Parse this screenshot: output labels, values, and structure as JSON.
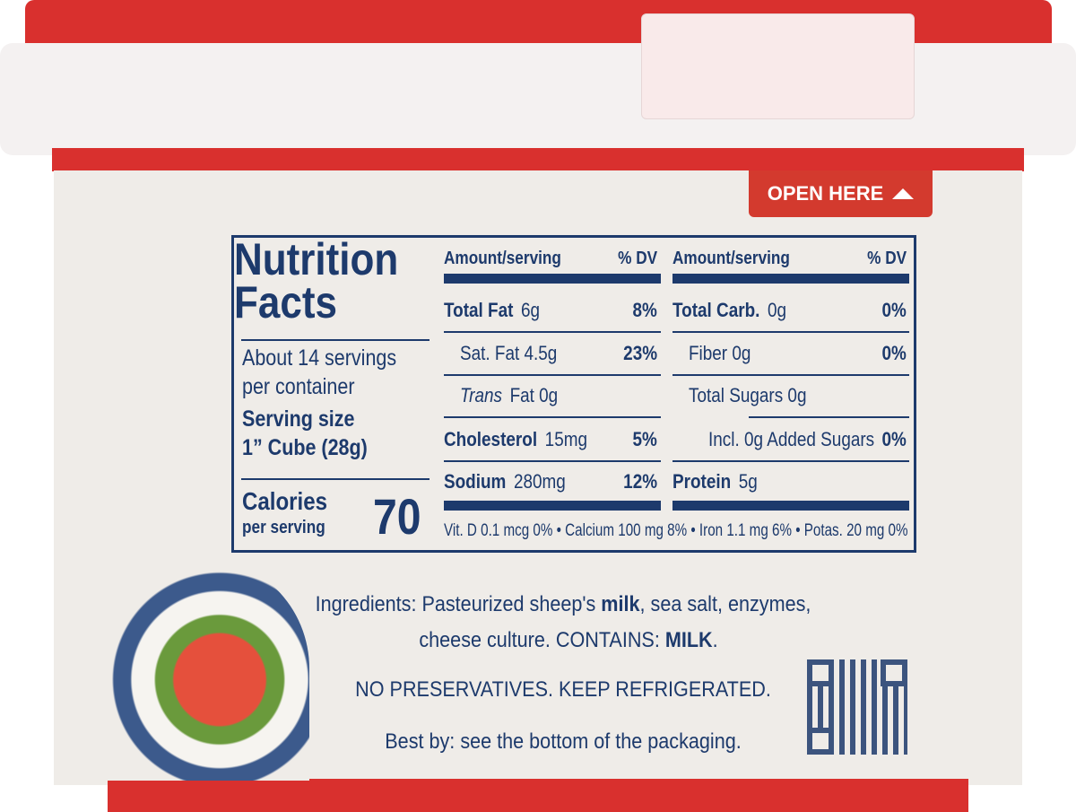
{
  "colors": {
    "navy": "#1d3a6c",
    "red": "#d9302e",
    "cream": "#efece8"
  },
  "open_here": {
    "label": "OPEN HERE",
    "icon": "triangle-up-icon"
  },
  "nutrition": {
    "title_line1": "Nutrition",
    "title_line2": "Facts",
    "servings_line1": "About 14 servings",
    "servings_line2": "per container",
    "serving_size_label": "Serving size",
    "serving_size_value": "1” Cube (28g)",
    "calories_label": "Calories",
    "calories_sub": "per serving",
    "calories": "70",
    "header_amount": "Amount/serving",
    "header_dv": "% DV",
    "left": [
      {
        "name": "Total Fat",
        "amount": "6g",
        "dv": "8%"
      },
      {
        "name": "Sat. Fat 4.5g",
        "amount": "",
        "dv": "23%"
      },
      {
        "name": "Trans",
        "amount": "Fat 0g",
        "dv": ""
      },
      {
        "name": "Cholesterol",
        "amount": "15mg",
        "dv": "5%"
      },
      {
        "name": "Sodium",
        "amount": "280mg",
        "dv": "12%"
      }
    ],
    "right": [
      {
        "name": "Total Carb.",
        "amount": "0g",
        "dv": "0%"
      },
      {
        "name": "Fiber 0g",
        "amount": "",
        "dv": "0%"
      },
      {
        "name": "Total Sugars 0g",
        "amount": "",
        "dv": ""
      },
      {
        "name": "Incl. 0g Added Sugars",
        "amount": "",
        "dv": "0%"
      },
      {
        "name": "Protein",
        "amount": "5g",
        "dv": ""
      }
    ],
    "footnote": "Vit. D 0.1 mcg 0% • Calcium 100 mg 8% • Iron 1.1 mg 6% • Potas. 20 mg 0%"
  },
  "ingredients": {
    "prefix": "Ingredients: Pasteurized sheep's ",
    "milk": "milk",
    "rest1": ", sea salt, enzymes,",
    "line2": "cheese culture. CONTAINS: ",
    "contains": "MILK",
    "dot": "."
  },
  "storage": "NO PRESERVATIVES. KEEP REFRIGERATED.",
  "best_by": "Best by: see the bottom of the packaging."
}
